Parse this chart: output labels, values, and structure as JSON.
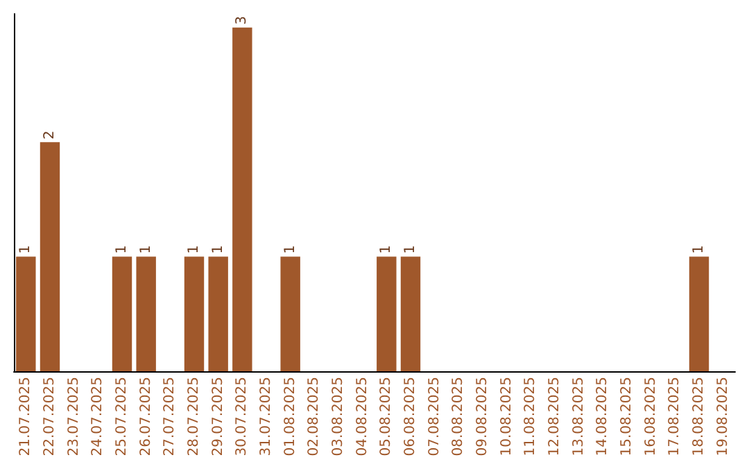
{
  "chart_data": {
    "type": "bar",
    "categories": [
      "21.07.2025",
      "22.07.2025",
      "23.07.2025",
      "24.07.2025",
      "25.07.2025",
      "26.07.2025",
      "27.07.2025",
      "28.07.2025",
      "29.07.2025",
      "30.07.2025",
      "31.07.2025",
      "01.08.2025",
      "02.08.2025",
      "03.08.2025",
      "04.08.2025",
      "05.08.2025",
      "06.08.2025",
      "07.08.2025",
      "08.08.2025",
      "09.08.2025",
      "10.08.2025",
      "11.08.2025",
      "12.08.2025",
      "13.08.2025",
      "14.08.2025",
      "15.08.2025",
      "16.08.2025",
      "17.08.2025",
      "18.08.2025",
      "19.08.2025"
    ],
    "values": [
      1,
      2,
      0,
      0,
      1,
      1,
      0,
      1,
      1,
      3,
      0,
      1,
      0,
      0,
      0,
      1,
      1,
      0,
      0,
      0,
      0,
      0,
      0,
      0,
      0,
      0,
      0,
      0,
      1,
      0
    ],
    "value_labels": [
      "1",
      "2",
      null,
      null,
      "1",
      "1",
      null,
      "1",
      "1",
      "3",
      null,
      "1",
      null,
      null,
      null,
      "1",
      "1",
      null,
      null,
      null,
      null,
      null,
      null,
      null,
      null,
      null,
      null,
      null,
      "1",
      null
    ],
    "color": "#a0582b",
    "tick_labels": "x",
    "grid": false
  }
}
